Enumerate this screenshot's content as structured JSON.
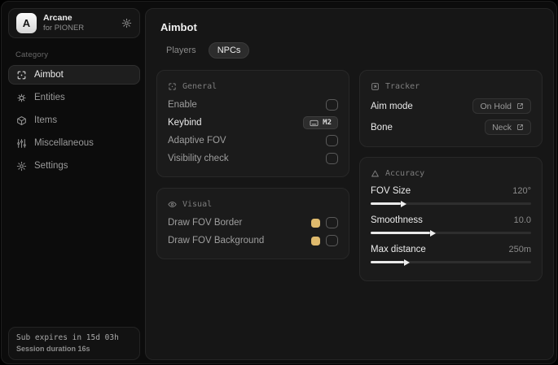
{
  "app": {
    "logo_letter": "A",
    "name": "Arcane",
    "subtitle": "for PIONER"
  },
  "sidebar": {
    "category_label": "Category",
    "items": [
      {
        "label": "Aimbot",
        "icon": "crosshair-icon",
        "active": true
      },
      {
        "label": "Entities",
        "icon": "entities-icon",
        "active": false
      },
      {
        "label": "Items",
        "icon": "box-icon",
        "active": false
      },
      {
        "label": "Miscellaneous",
        "icon": "sliders-icon",
        "active": false
      },
      {
        "label": "Settings",
        "icon": "gear-icon",
        "active": false
      }
    ],
    "footer": {
      "line1": "Sub expires in 15d 03h",
      "line2": "Session duration 16s"
    }
  },
  "main": {
    "title": "Aimbot",
    "tabs": [
      {
        "label": "Players",
        "active": false
      },
      {
        "label": "NPCs",
        "active": true
      }
    ],
    "panels": {
      "general": {
        "title": "General",
        "rows": [
          {
            "label": "Enable",
            "control": "checkbox",
            "checked": false
          },
          {
            "label": "Keybind",
            "control": "keybadge",
            "value": "M2"
          },
          {
            "label": "Adaptive FOV",
            "control": "checkbox",
            "checked": false
          },
          {
            "label": "Visibility check",
            "control": "checkbox",
            "checked": false
          }
        ]
      },
      "visual": {
        "title": "Visual",
        "rows": [
          {
            "label": "Draw FOV Border",
            "swatch": "#dfba6d",
            "checked": false
          },
          {
            "label": "Draw FOV Background",
            "swatch": "#dfba6d",
            "checked": false
          }
        ]
      },
      "tracker": {
        "title": "Tracker",
        "rows": [
          {
            "label": "Aim mode",
            "value": "On Hold"
          },
          {
            "label": "Bone",
            "value": "Neck"
          }
        ]
      },
      "accuracy": {
        "title": "Accuracy",
        "sliders": [
          {
            "label": "FOV Size",
            "value": "120°",
            "percent": 19
          },
          {
            "label": "Smoothness",
            "value": "10.0",
            "percent": 37
          },
          {
            "label": "Max distance",
            "value": "250m",
            "percent": 21
          }
        ]
      }
    }
  },
  "colors": {
    "accent_swatch": "#dfba6d"
  }
}
